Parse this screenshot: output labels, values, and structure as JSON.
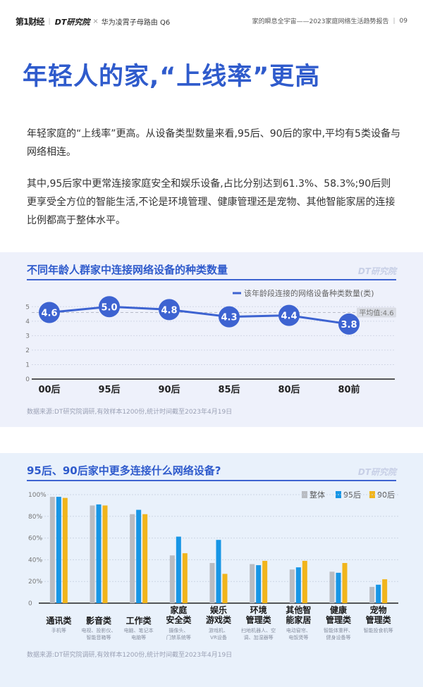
{
  "header": {
    "brand_logo_1": "第1财经",
    "brand_logo_2": "DT研究院",
    "cross": "×",
    "partner": "华为凌霄子母路由 Q6",
    "report_title": "家的瞬息全宇宙——2023家庭网络生活趋势报告",
    "divider": "|",
    "page_number": "09"
  },
  "page_title": "年轻人的家,“上线率”更高",
  "paragraph1": "年轻家庭的“上线率”更高。从设备类型数量来看,95后、90后的家中,平均有5类设备与网络相连。",
  "paragraph2": "其中,95后家中更常连接家庭安全和娱乐设备,占比分别达到61.3%、58.3%;90后则更享受全方位的智能生活,不论是环境管理、健康管理还是宠物、其他智能家居的连接比例都高于整体水平。",
  "chart_data": [
    {
      "type": "line",
      "title": "不同年龄人群家中连接网络设备的种类数量",
      "watermark": "DT研究院",
      "legend_label": "该年龄段连接的网络设备种类数量(类)",
      "categories": [
        "00后",
        "95后",
        "90后",
        "85后",
        "80后",
        "80前"
      ],
      "series": [
        {
          "name": "该年龄段连接的网络设备种类数量(类)",
          "values": [
            4.6,
            5.0,
            4.8,
            4.3,
            4.4,
            3.8
          ],
          "color": "#3d63d1"
        }
      ],
      "reference_line": {
        "label": "平均值:4.6",
        "value": 4.6
      },
      "y_ticks": [
        "0",
        "1",
        "2",
        "3",
        "4",
        "5"
      ],
      "ylim": [
        0,
        5.5
      ],
      "source": "数据来源:DT研究院调研,有效样本1200份,统计时间截至2023年4月19日"
    },
    {
      "type": "bar",
      "title": "95后、90后家中更多连接什么网络设备?",
      "watermark": "DT研究院",
      "categories": [
        "通讯类",
        "影音类",
        "工作类",
        "家庭\n安全类",
        "娱乐\n游戏类",
        "环境\n管理类",
        "其他智\n能家居",
        "健康\n管理类",
        "宠物\n管理类"
      ],
      "sublabels": [
        "手机等",
        "电视、投影仪、\n智能音箱等",
        "电脑、笔记本\n电脑等",
        "摄像头、\n门禁系统等",
        "游戏机、\nVR设备",
        "扫地机器人、空\n调、加湿器等",
        "电动窗帘、\n电饭煲等",
        "智能体重秤、\n健身设备等",
        "智能投食机等"
      ],
      "series": [
        {
          "name": "整体",
          "color": "#b9bcc2",
          "values": [
            98,
            90,
            82,
            44,
            37,
            36,
            31,
            29,
            15
          ]
        },
        {
          "name": "95后",
          "color": "#1796e6",
          "values": [
            98,
            91,
            86,
            61.3,
            58.3,
            35,
            33,
            28,
            17
          ]
        },
        {
          "name": "90后",
          "color": "#f1b51c",
          "values": [
            97,
            90,
            82,
            46,
            27,
            39,
            39,
            37,
            22
          ]
        }
      ],
      "y_ticks": [
        "0",
        "20%",
        "40%",
        "60%",
        "80%",
        "100%"
      ],
      "ylim": [
        0,
        100
      ],
      "source": "数据来源:DT研究院调研,有效样本1200份,统计时间截至2023年4月19日"
    }
  ]
}
